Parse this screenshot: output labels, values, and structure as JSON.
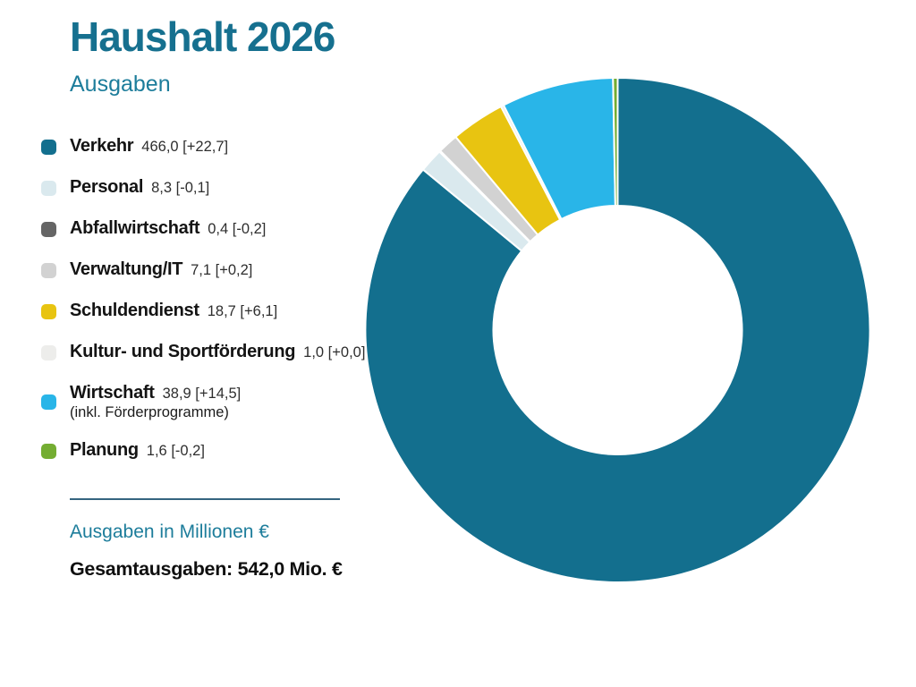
{
  "header": {
    "title": "Haushalt 2026",
    "subtitle": "Ausgaben"
  },
  "footer": {
    "unit_label": "Ausgaben in Millionen €",
    "total_label": "Gesamtausgaben: 542,0 Mio. €"
  },
  "colors": {
    "title_teal": "#16708f",
    "subtitle_teal": "#1d7d9b",
    "divider": "#356580",
    "text_dark": "#141414"
  },
  "chart_data": {
    "type": "pie",
    "donut": true,
    "title": "Haushalt 2026",
    "subtitle": "Ausgaben",
    "unit": "Millionen €",
    "total_value": 542.0,
    "total_display": "542,0",
    "start_angle_deg_from_top": 0,
    "direction": "clockwise",
    "legend_position": "left",
    "segments": [
      {
        "id": "verkehr",
        "label": "Verkehr",
        "value": 466.0,
        "delta": 22.7,
        "display": "466,0 [+22,7]",
        "color": "#136f8e"
      },
      {
        "id": "personal",
        "label": "Personal",
        "value": 8.3,
        "delta": -0.1,
        "display": "8,3 [-0,1]",
        "color": "#dae9ee"
      },
      {
        "id": "abfallwirtschaft",
        "label": "Abfallwirtschaft",
        "value": 0.4,
        "delta": -0.2,
        "display": "0,4 [-0,2]",
        "color": "#656565"
      },
      {
        "id": "verwaltung-it",
        "label": "Verwaltung/IT",
        "value": 7.1,
        "delta": 0.2,
        "display": "7,1 [+0,2]",
        "color": "#d2d2d2"
      },
      {
        "id": "schuldendienst",
        "label": "Schuldendienst",
        "value": 18.7,
        "delta": 6.1,
        "display": "18,7 [+6,1]",
        "color": "#e8c411"
      },
      {
        "id": "kultur-sportfoerderung",
        "label": "Kultur- und Sportförderung",
        "value": 1.0,
        "delta": 0.0,
        "display": "1,0 [+0,0]",
        "color": "#ededeb"
      },
      {
        "id": "wirtschaft",
        "label": "Wirtschaft",
        "sublabel": "(inkl. Förderprogramme)",
        "value": 38.9,
        "delta": 14.5,
        "display": "38,9 [+14,5]",
        "color": "#29b5e8"
      },
      {
        "id": "planung",
        "label": "Planung",
        "value": 1.6,
        "delta": -0.2,
        "display": "1,6 [-0,2]",
        "color": "#74ad32"
      }
    ]
  }
}
